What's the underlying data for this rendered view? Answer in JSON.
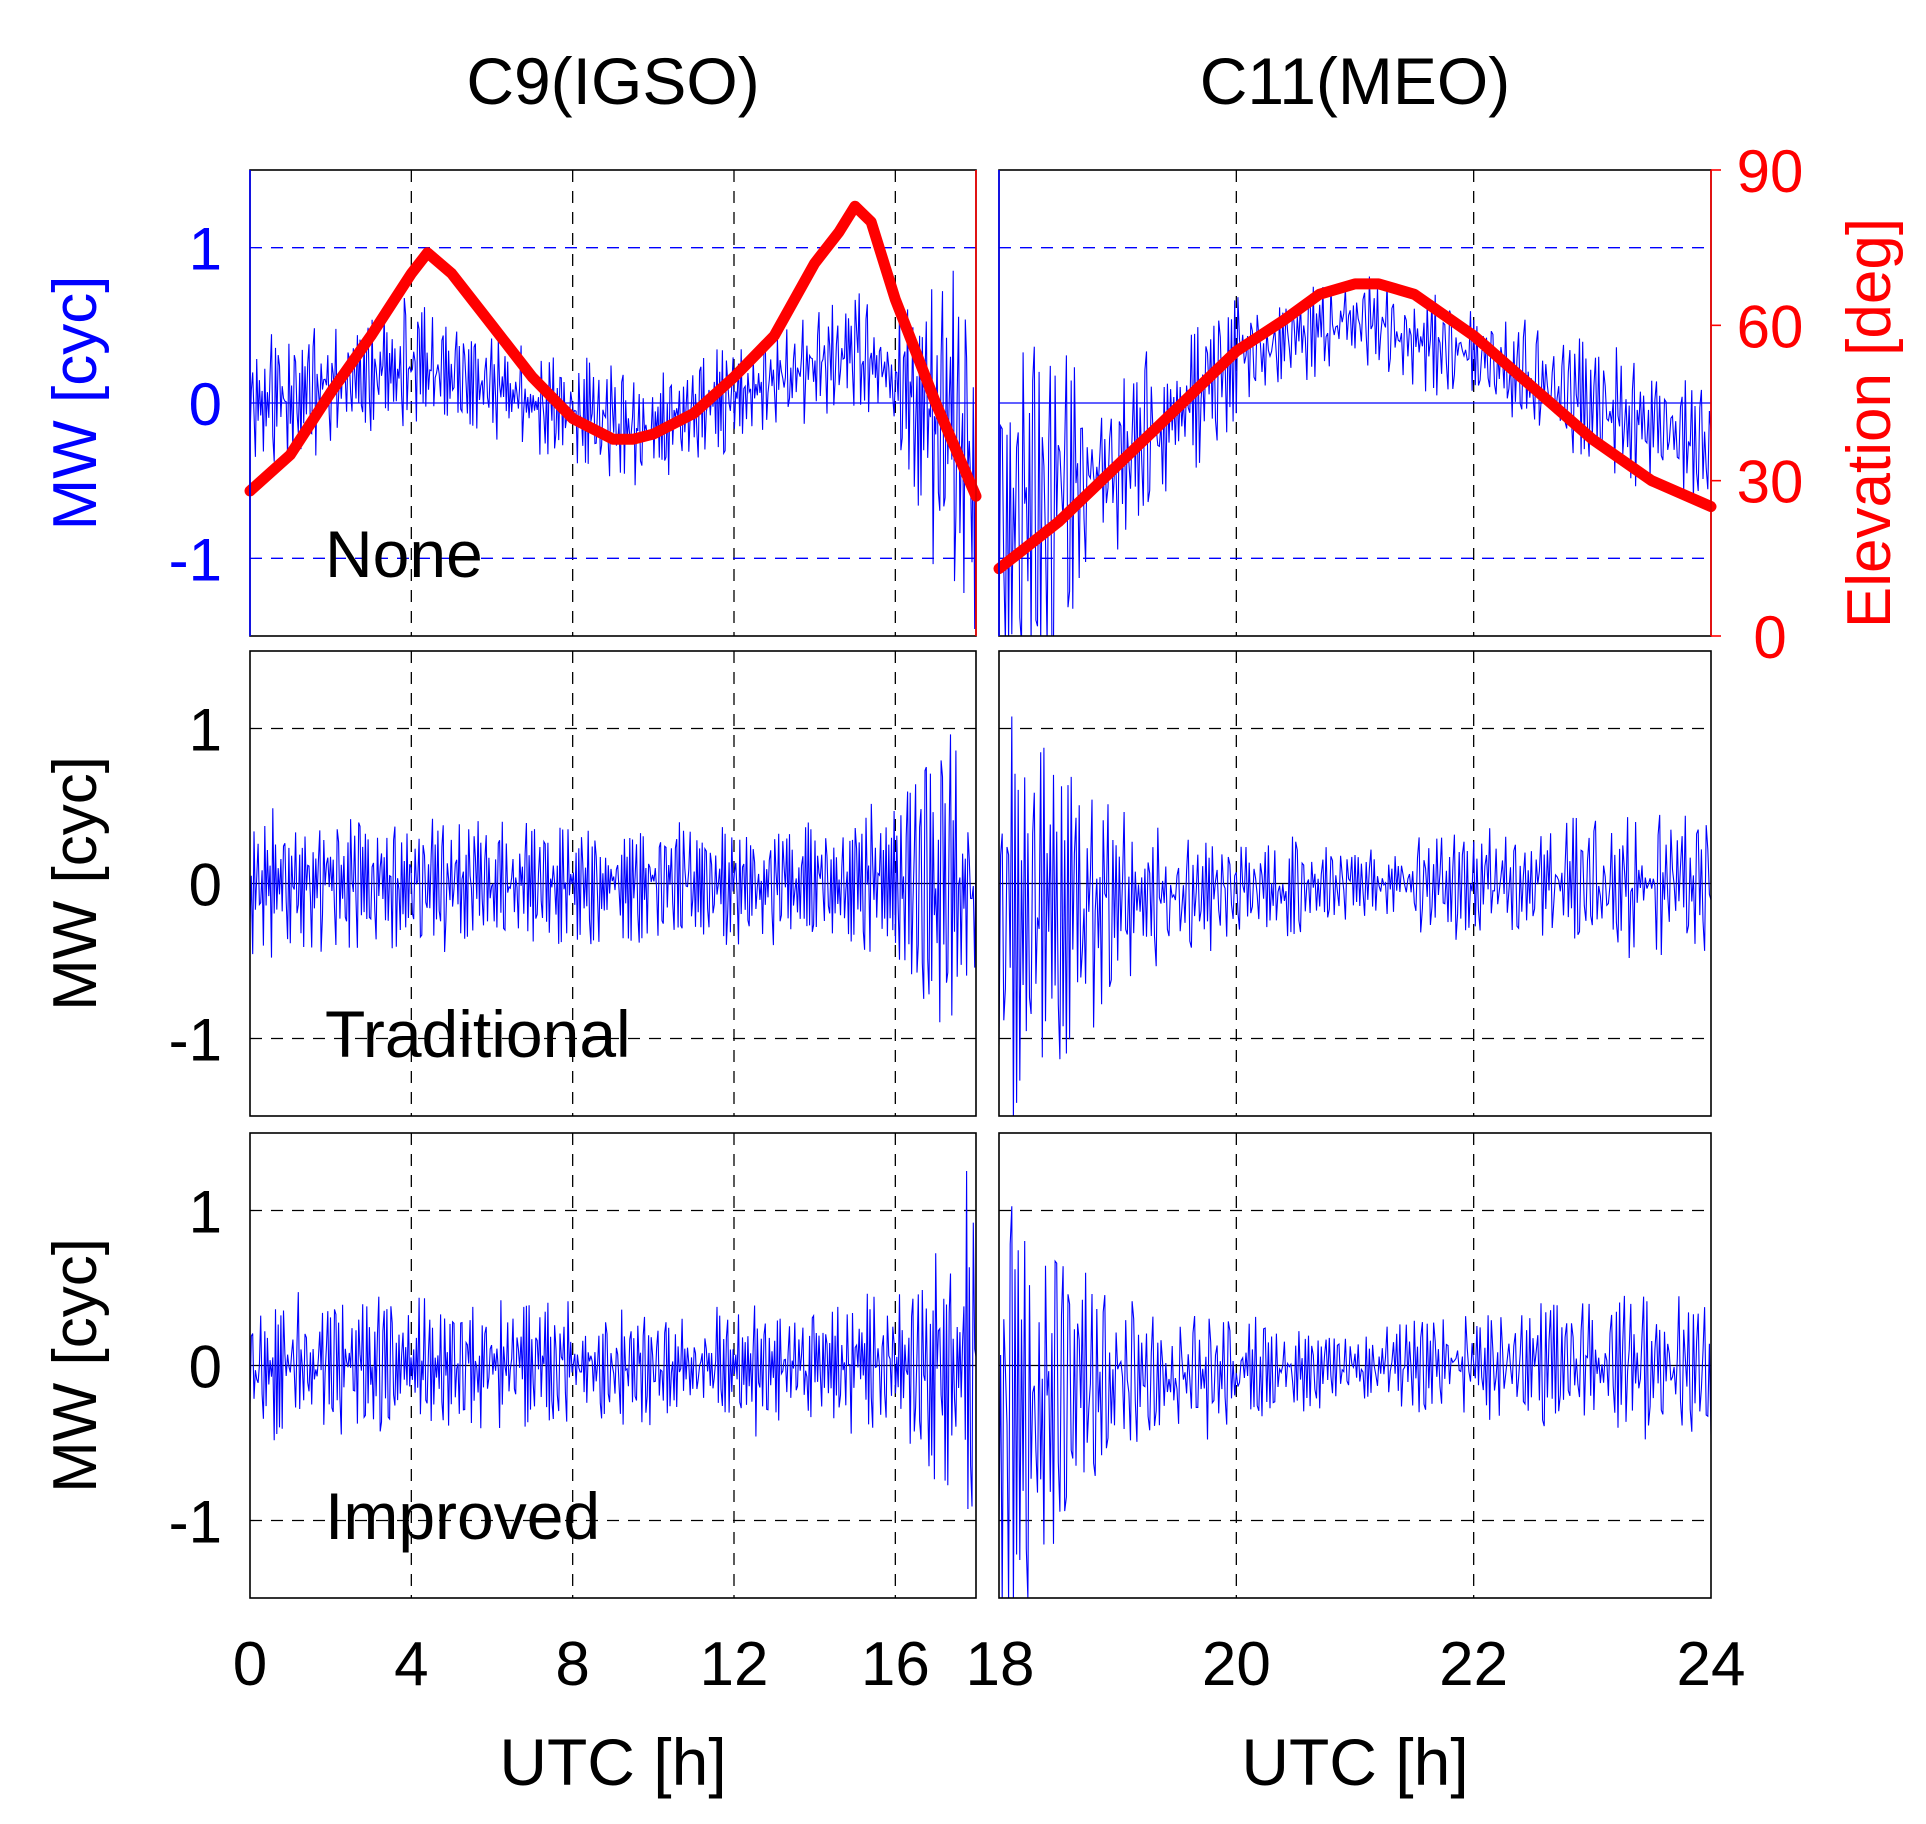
{
  "colors": {
    "mw": "#0000ff",
    "elevation": "#ff0000",
    "axis": "#000000",
    "background": "#ffffff"
  },
  "chart_data": [
    {
      "type": "line",
      "id": "c9-none",
      "column_title": "C9(IGSO)",
      "annotation": "None",
      "ylabel": "MW [cyc]",
      "ylabel_color": "#0000ff",
      "ylim": [
        -1.5,
        1.5
      ],
      "yticks": [
        -1,
        0,
        1
      ],
      "tick_color": "#0000ff",
      "xlim": [
        0,
        18
      ],
      "xticks": [
        0,
        4,
        8,
        12,
        16,
        18
      ],
      "grid": true,
      "series": [
        {
          "name": "MW",
          "color": "#0000ff",
          "noise": {
            "seed": 11,
            "amp": [
              [
                0,
                0.45
              ],
              [
                3,
                0.4
              ],
              [
                6,
                0.35
              ],
              [
                10,
                0.35
              ],
              [
                14,
                0.35
              ],
              [
                16,
                0.45
              ],
              [
                17,
                0.9
              ],
              [
                18,
                1.3
              ]
            ],
            "trend": [
              [
                0,
                0
              ],
              [
                4.3,
                0.25
              ],
              [
                9.7,
                -0.2
              ],
              [
                15,
                0.35
              ],
              [
                18,
                -0.3
              ]
            ]
          }
        },
        {
          "name": "Elevation",
          "color": "#ff0000",
          "axis": "right",
          "x": [
            0,
            1,
            2,
            3,
            4,
            4.4,
            5,
            6,
            7,
            8,
            9,
            9.5,
            10,
            11,
            12,
            13,
            14,
            14.6,
            15,
            15.4,
            16,
            17,
            18
          ],
          "values": [
            28,
            35,
            47,
            58,
            70,
            74,
            70,
            60,
            50,
            42,
            38,
            38,
            39,
            43,
            50,
            58,
            72,
            78,
            83,
            80,
            65,
            45,
            27
          ]
        }
      ]
    },
    {
      "type": "line",
      "id": "c11-none",
      "column_title": "C11(MEO)",
      "ylabel_right": "Elevation [deg]",
      "ylabel_right_color": "#ff0000",
      "ylim_right": [
        0,
        90
      ],
      "yticks_right": [
        0,
        30,
        60,
        90
      ],
      "tick_color_right": "#ff0000",
      "ylim": [
        -1.5,
        1.5
      ],
      "xlim": [
        18,
        24
      ],
      "xticks": [
        18,
        20,
        22,
        24
      ],
      "grid": true,
      "series": [
        {
          "name": "MW",
          "color": "#0000ff",
          "noise": {
            "seed": 23,
            "amp": [
              [
                18,
                1.5
              ],
              [
                18.3,
                1.1
              ],
              [
                18.8,
                0.7
              ],
              [
                19.5,
                0.5
              ],
              [
                21,
                0.3
              ],
              [
                22,
                0.35
              ],
              [
                23,
                0.4
              ],
              [
                24,
                0.4
              ]
            ],
            "trend": [
              [
                18,
                -0.8
              ],
              [
                19,
                -0.4
              ],
              [
                20,
                0.3
              ],
              [
                21,
                0.55
              ],
              [
                22,
                0.3
              ],
              [
                23,
                0
              ],
              [
                24,
                -0.3
              ]
            ]
          }
        },
        {
          "name": "Elevation",
          "color": "#ff0000",
          "axis": "right",
          "x": [
            18,
            18.5,
            19,
            19.5,
            20,
            20.4,
            20.7,
            21,
            21.2,
            21.5,
            22,
            22.5,
            23,
            23.5,
            24
          ],
          "values": [
            13,
            22,
            33,
            44,
            55,
            61,
            66,
            68,
            68,
            66,
            58,
            48,
            38,
            30,
            25
          ]
        }
      ]
    },
    {
      "type": "line",
      "id": "c9-traditional",
      "annotation": "Traditional",
      "ylabel": "MW [cyc]",
      "ylabel_color": "#000000",
      "ylim": [
        -1.5,
        1.5
      ],
      "yticks": [
        -1,
        0,
        1
      ],
      "tick_color": "#000000",
      "xlim": [
        0,
        18
      ],
      "xticks": [
        0,
        4,
        8,
        12,
        16,
        18
      ],
      "grid": true,
      "series": [
        {
          "name": "MW",
          "color": "#0000ff",
          "noise": {
            "seed": 37,
            "amp": [
              [
                0,
                0.5
              ],
              [
                3,
                0.45
              ],
              [
                8,
                0.4
              ],
              [
                14,
                0.4
              ],
              [
                16,
                0.5
              ],
              [
                17,
                0.9
              ],
              [
                18,
                1.4
              ]
            ],
            "trend": [
              [
                0,
                0
              ],
              [
                18,
                0
              ]
            ]
          }
        }
      ]
    },
    {
      "type": "line",
      "id": "c11-traditional",
      "ylim": [
        -1.5,
        1.5
      ],
      "xlim": [
        18,
        24
      ],
      "xticks": [
        18,
        20,
        22,
        24
      ],
      "grid": true,
      "series": [
        {
          "name": "MW",
          "color": "#0000ff",
          "noise": {
            "seed": 41,
            "amp": [
              [
                18,
                1.5
              ],
              [
                18.3,
                1.2
              ],
              [
                18.8,
                0.7
              ],
              [
                19.5,
                0.45
              ],
              [
                21,
                0.25
              ],
              [
                22,
                0.35
              ],
              [
                23,
                0.45
              ],
              [
                24,
                0.45
              ]
            ],
            "trend": [
              [
                18,
                -0.3
              ],
              [
                19,
                -0.1
              ],
              [
                21,
                0
              ],
              [
                24,
                0
              ]
            ]
          }
        }
      ]
    },
    {
      "type": "line",
      "id": "c9-improved",
      "annotation": "Improved",
      "ylabel": "MW [cyc]",
      "ylabel_color": "#000000",
      "ylim": [
        -1.5,
        1.5
      ],
      "yticks": [
        -1,
        0,
        1
      ],
      "tick_color": "#000000",
      "xlim": [
        0,
        18
      ],
      "xticks": [
        0,
        4,
        8,
        12,
        16,
        18
      ],
      "xlabel": "UTC [h]",
      "grid": true,
      "series": [
        {
          "name": "MW",
          "color": "#0000ff",
          "noise": {
            "seed": 53,
            "amp": [
              [
                0,
                0.5
              ],
              [
                3,
                0.45
              ],
              [
                8,
                0.4
              ],
              [
                14,
                0.4
              ],
              [
                16,
                0.5
              ],
              [
                17,
                0.9
              ],
              [
                18,
                1.4
              ]
            ],
            "trend": [
              [
                0,
                0
              ],
              [
                18,
                0
              ]
            ]
          }
        }
      ]
    },
    {
      "type": "line",
      "id": "c11-improved",
      "ylim": [
        -1.5,
        1.5
      ],
      "xlim": [
        18,
        24
      ],
      "xticks": [
        18,
        20,
        22,
        24
      ],
      "xlabel": "UTC [h]",
      "grid": true,
      "series": [
        {
          "name": "MW",
          "color": "#0000ff",
          "noise": {
            "seed": 67,
            "amp": [
              [
                18,
                1.5
              ],
              [
                18.3,
                1.2
              ],
              [
                18.8,
                0.7
              ],
              [
                19.5,
                0.45
              ],
              [
                21,
                0.25
              ],
              [
                22,
                0.35
              ],
              [
                23,
                0.45
              ],
              [
                24,
                0.45
              ]
            ],
            "trend": [
              [
                18,
                -0.3
              ],
              [
                19,
                -0.1
              ],
              [
                21,
                0
              ],
              [
                24,
                0
              ]
            ]
          }
        }
      ]
    }
  ]
}
